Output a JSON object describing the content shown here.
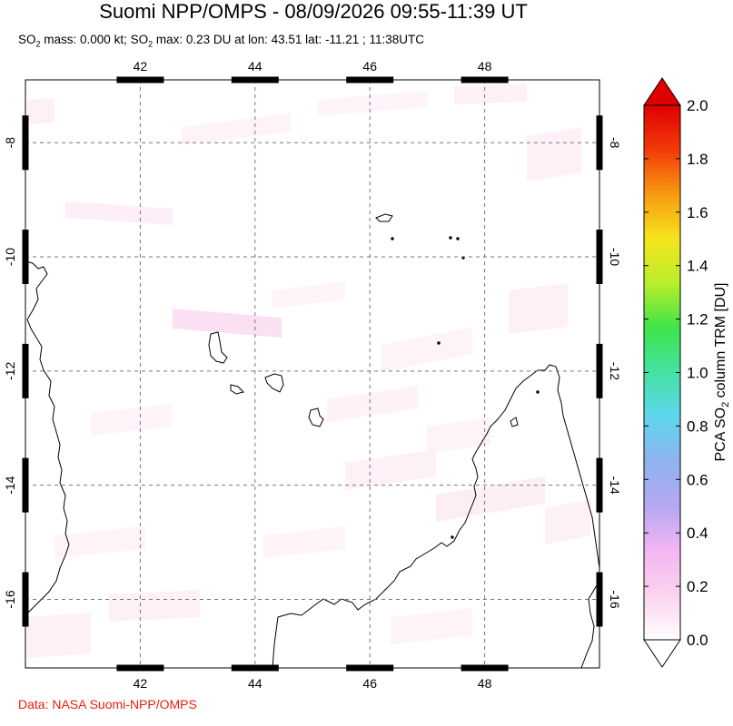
{
  "title": "Suomi NPP/OMPS - 08/09/2026 09:55-11:39 UT",
  "subtitle": {
    "p1": "SO",
    "p1_sub": "2",
    "p2": " mass: 0.000 kt; SO",
    "p2_sub": "2",
    "p3": " max: 0.23 DU at lon: 43.51 lat: -11.21 ; 11:38UTC"
  },
  "credit": "Data: NASA Suomi-NPP/OMPS",
  "map": {
    "lon_ticks": [
      "42",
      "44",
      "46",
      "48"
    ],
    "lat_ticks": [
      "-8",
      "-10",
      "-12",
      "-14",
      "-16"
    ],
    "lon_values": [
      42,
      44,
      46,
      48
    ],
    "lat_values": [
      -8,
      -10,
      -12,
      -14,
      -16
    ],
    "lon_range": [
      40,
      50
    ],
    "lat_range": [
      -17.2,
      -6.9
    ],
    "grid": true
  },
  "colorbar": {
    "title_pre": "PCA SO",
    "title_sub": "2",
    "title_post": " column TRM [DU]",
    "labels": [
      "0.0",
      "0.2",
      "0.4",
      "0.6",
      "0.8",
      "1.0",
      "1.2",
      "1.4",
      "1.6",
      "1.8",
      "2.0"
    ],
    "range": [
      0,
      2
    ],
    "colors": [
      "#ffffff",
      "#fbd3ee",
      "#f3b6f2",
      "#b5a8f2",
      "#8fb2f0",
      "#5fd6ee",
      "#44e2a2",
      "#3ee44a",
      "#b8ee2a",
      "#f6e41c",
      "#f79a10",
      "#f33a0a",
      "#e00000"
    ]
  }
}
